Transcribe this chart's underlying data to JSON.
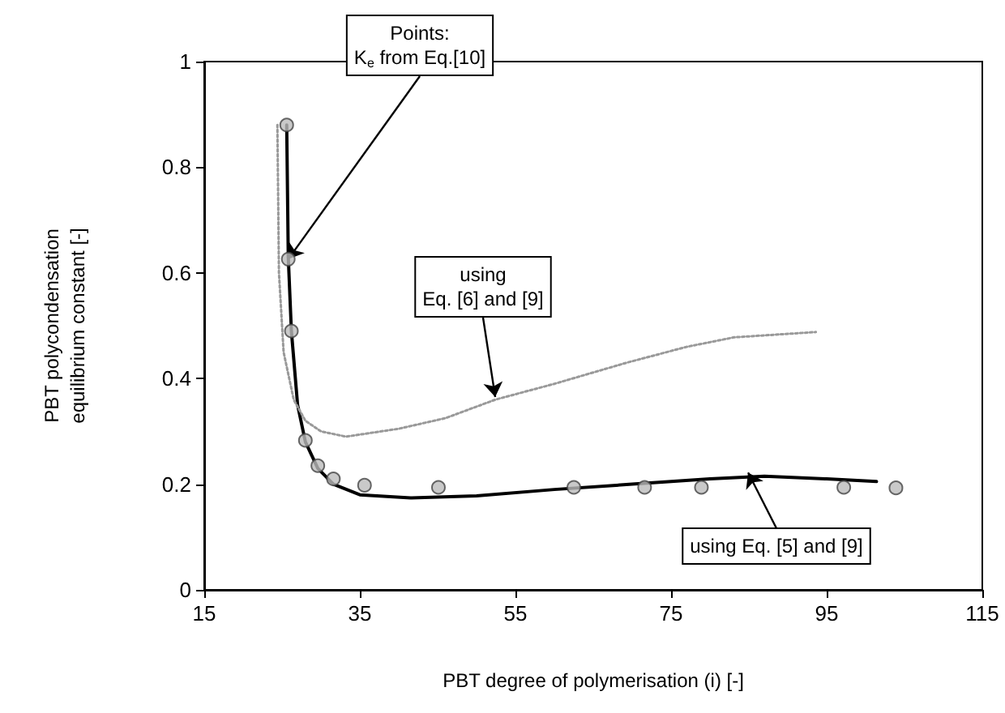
{
  "chart_data": {
    "type": "line",
    "xlabel": "PBT degree of polymerisation (i) [-]",
    "ylabel": "PBT polycondensation\nequilibrium constant [-]",
    "xlim": [
      15,
      115
    ],
    "xticks": [
      15,
      35,
      55,
      75,
      95,
      115
    ],
    "ylim": [
      0,
      1
    ],
    "yticks": [
      0,
      0.2,
      0.4,
      0.6,
      0.8,
      1
    ],
    "grid": false,
    "series": [
      {
        "type": "scatter",
        "color": "#bbbbbb",
        "marker": "circle",
        "x": [
          25.6,
          25.8,
          26.2,
          28.0,
          29.6,
          31.6,
          35.6,
          45.1,
          62.5,
          71.6,
          78.9,
          97.2,
          103.9
        ],
        "values": [
          0.88,
          0.626,
          0.49,
          0.283,
          0.235,
          0.21,
          0.198,
          0.194,
          0.194,
          0.194,
          0.194,
          0.194,
          0.193
        ]
      },
      {
        "color": "#000000",
        "line_style": "solid",
        "marker": "none",
        "x": [
          25.6,
          25.8,
          26.2,
          27.0,
          28.0,
          29.6,
          31.6,
          35.0,
          41.5,
          50,
          60,
          70,
          80,
          87,
          95,
          101.4
        ],
        "values": [
          0.88,
          0.63,
          0.49,
          0.35,
          0.28,
          0.23,
          0.2,
          0.18,
          0.174,
          0.178,
          0.19,
          0.2,
          0.21,
          0.215,
          0.21,
          0.205
        ]
      },
      {
        "color": "#999999",
        "line_style": "dotted",
        "marker": "none",
        "x": [
          24.4,
          24.6,
          25.2,
          26.5,
          28,
          30,
          33.2,
          40,
          46,
          52.4,
          60,
          69.3,
          77,
          83.1,
          93.6
        ],
        "values": [
          0.88,
          0.6,
          0.45,
          0.36,
          0.32,
          0.3,
          0.29,
          0.305,
          0.325,
          0.36,
          0.39,
          0.43,
          0.46,
          0.478,
          0.488
        ]
      }
    ],
    "annotations": [
      {
        "text": "Points:\nK$_{e}$ from Eq.[10]",
        "x": 25.8,
        "y": 0.626
      },
      {
        "text": "using\nEq. [6] and [9]",
        "x": 52.4,
        "y": 0.365
      },
      {
        "text": "using Eq. [5] and [9]",
        "x": 84.9,
        "y": 0.222
      }
    ]
  }
}
